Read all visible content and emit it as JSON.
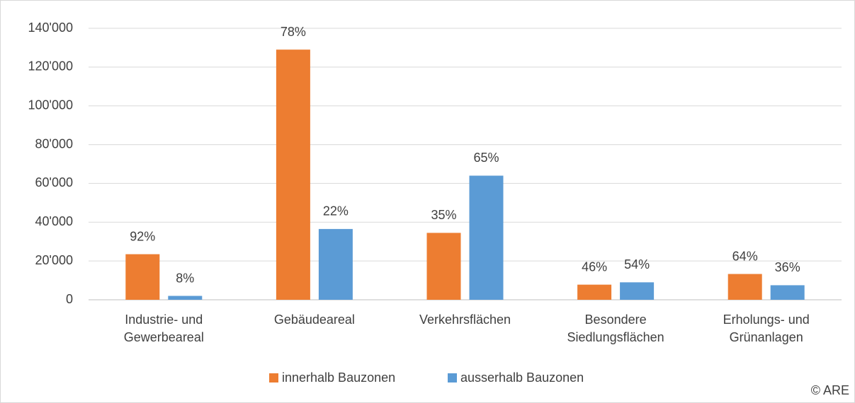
{
  "chart_data": {
    "type": "bar",
    "categories": [
      [
        "Industrie- und",
        "Gewerbeareal"
      ],
      [
        "Gebäudeareal"
      ],
      [
        "Verkehrsflächen"
      ],
      [
        "Besondere",
        "Siedlungsflächen"
      ],
      [
        "Erholungs- und",
        "Grünanlagen"
      ]
    ],
    "series": [
      {
        "name": "innerhalb Bauzonen",
        "color": "#ed7d31",
        "values": [
          23500,
          129000,
          34500,
          7800,
          13300
        ],
        "labels": [
          "92%",
          "78%",
          "35%",
          "46%",
          "64%"
        ]
      },
      {
        "name": "ausserhalb Bauzonen",
        "color": "#5b9bd5",
        "values": [
          2000,
          36500,
          64000,
          9000,
          7500
        ],
        "labels": [
          "8%",
          "22%",
          "65%",
          "54%",
          "36%"
        ]
      }
    ],
    "ylim": [
      0,
      140000
    ],
    "yticks": [
      0,
      {
        "value": 20000,
        "label": "20'000"
      },
      {
        "value": 40000,
        "label": "40'000"
      },
      {
        "value": 60000,
        "label": "60'000"
      },
      {
        "value": 80000,
        "label": "80'000"
      },
      {
        "value": 100000,
        "label": "100'000"
      },
      {
        "value": 120000,
        "label": "120'000"
      },
      {
        "value": 140000,
        "label": "140'000"
      }
    ],
    "grid": true,
    "legend": "bottom",
    "source": "© ARE"
  }
}
